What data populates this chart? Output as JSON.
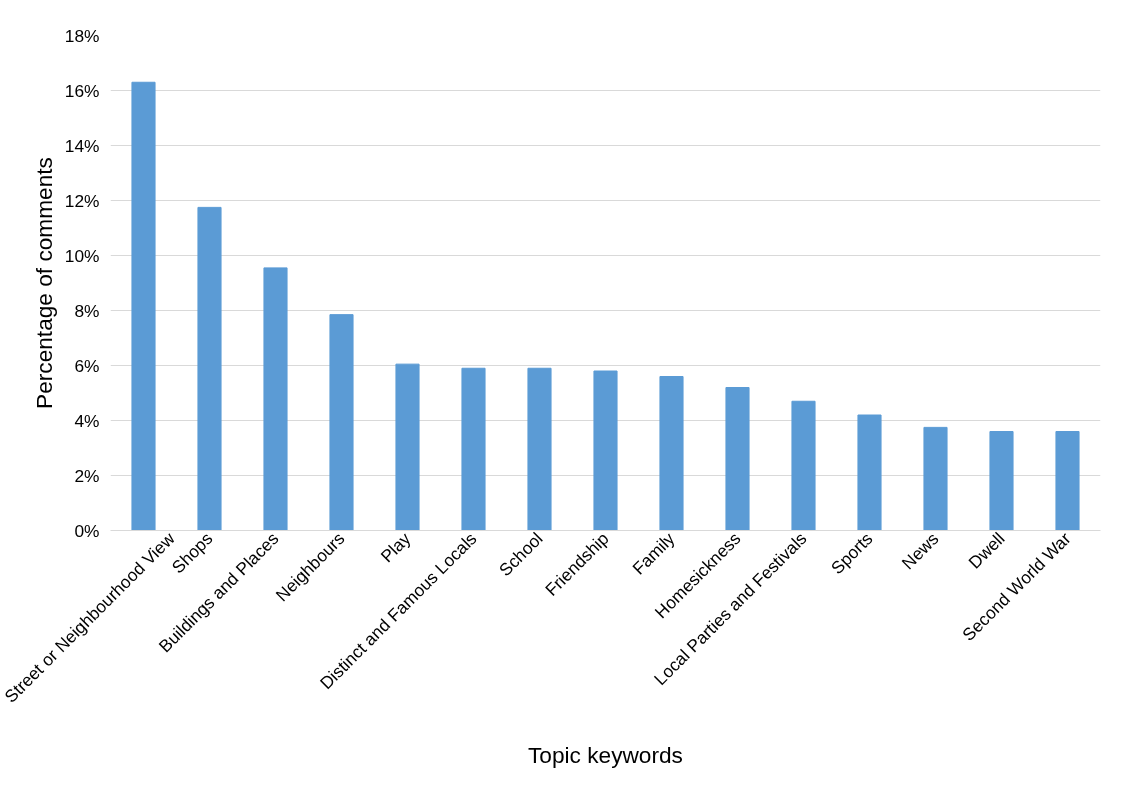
{
  "chart_data": {
    "type": "bar",
    "xlabel": "Topic keywords",
    "ylabel": "Percentage of comments",
    "categories": [
      "Street or Neighbourhood View",
      "Shops",
      "Buildings and Places",
      "Neighbours",
      "Play",
      "Distinct and Famous Locals",
      "School",
      "Friendship",
      "Family",
      "Homesickness",
      "Local Parties and Festivals",
      "Sports",
      "News",
      "Dwell",
      "Second World War"
    ],
    "values": [
      16.3,
      11.75,
      9.55,
      7.85,
      6.05,
      5.9,
      5.9,
      5.8,
      5.6,
      5.2,
      4.7,
      4.2,
      3.75,
      3.6,
      3.6
    ],
    "color": "#5b9bd5",
    "ylim": [
      0,
      18
    ],
    "yticks": [
      {
        "value": 0,
        "label": "0%"
      },
      {
        "value": 2,
        "label": "2%"
      },
      {
        "value": 4,
        "label": "4%"
      },
      {
        "value": 6,
        "label": "6%"
      },
      {
        "value": 8,
        "label": "8%"
      },
      {
        "value": 10,
        "label": "10%"
      },
      {
        "value": 12,
        "label": "12%"
      },
      {
        "value": 14,
        "label": "14%"
      },
      {
        "value": 16,
        "label": "16%"
      },
      {
        "value": 18,
        "label": "18%"
      }
    ],
    "grid": "y"
  }
}
